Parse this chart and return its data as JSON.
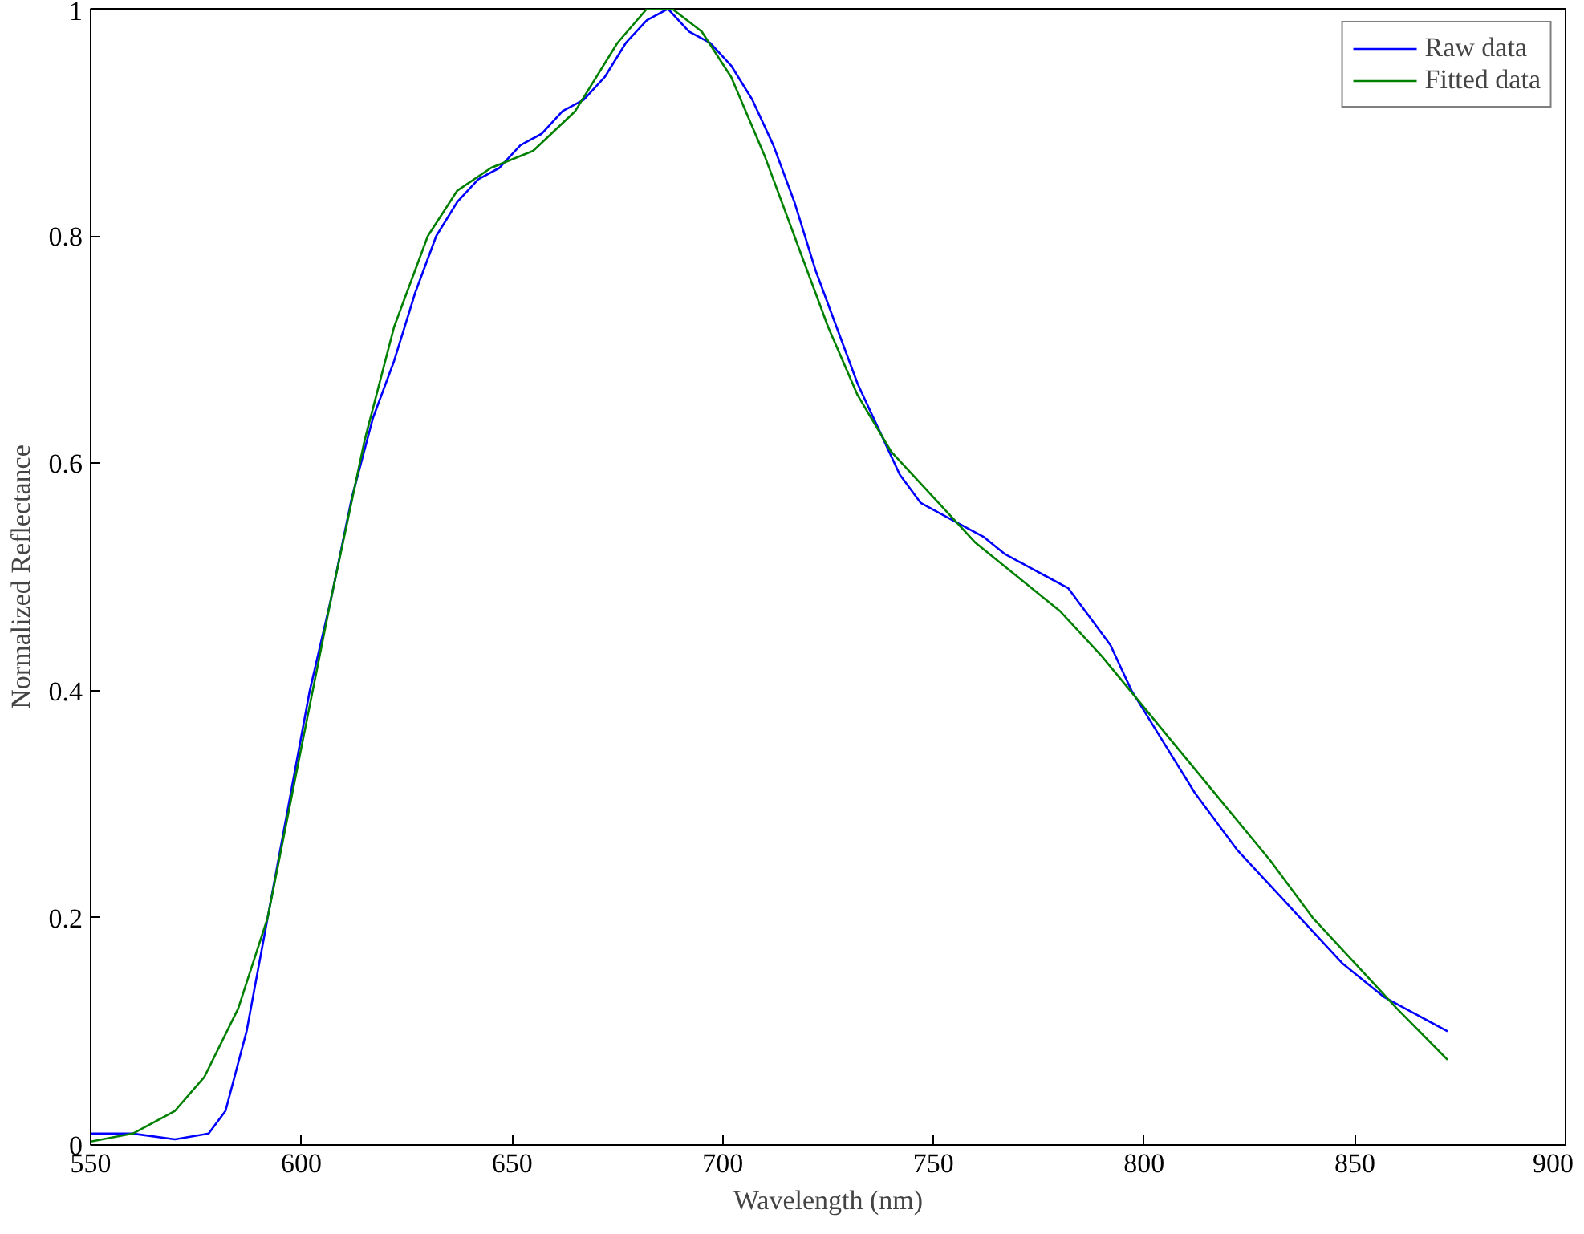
{
  "chart_data": {
    "type": "line",
    "xlabel": "Wavelength (nm)",
    "ylabel": "Normalized Reflectance",
    "xlim": [
      550,
      900
    ],
    "ylim": [
      0,
      1
    ],
    "xticks": [
      550,
      600,
      650,
      700,
      750,
      800,
      850,
      900
    ],
    "yticks": [
      0,
      0.2,
      0.4,
      0.6,
      0.8,
      1
    ],
    "grid": false,
    "legend": "top right",
    "marker": "none",
    "line_style": "solid",
    "series": [
      {
        "name": "Raw data",
        "color": "#0000ff",
        "x": [
          550,
          560,
          570,
          578,
          582,
          587,
          592,
          597,
          602,
          607,
          612,
          617,
          622,
          627,
          632,
          637,
          642,
          647,
          652,
          657,
          662,
          667,
          672,
          677,
          682,
          687,
          692,
          697,
          702,
          707,
          712,
          717,
          722,
          727,
          732,
          737,
          742,
          747,
          752,
          757,
          762,
          767,
          772,
          777,
          782,
          787,
          792,
          797,
          802,
          807,
          812,
          817,
          822,
          827,
          832,
          837,
          842,
          847,
          852,
          857,
          862,
          867,
          872
        ],
        "values": [
          0.01,
          0.01,
          0.005,
          0.01,
          0.03,
          0.1,
          0.2,
          0.3,
          0.4,
          0.48,
          0.57,
          0.64,
          0.69,
          0.75,
          0.8,
          0.83,
          0.85,
          0.86,
          0.88,
          0.89,
          0.91,
          0.92,
          0.94,
          0.97,
          0.99,
          1.0,
          0.98,
          0.97,
          0.95,
          0.92,
          0.88,
          0.83,
          0.77,
          0.72,
          0.67,
          0.63,
          0.59,
          0.565,
          0.555,
          0.545,
          0.535,
          0.52,
          0.51,
          0.5,
          0.49,
          0.465,
          0.44,
          0.4,
          0.37,
          0.34,
          0.31,
          0.285,
          0.26,
          0.24,
          0.22,
          0.2,
          0.18,
          0.16,
          0.145,
          0.13,
          0.12,
          0.11,
          0.1
        ]
      },
      {
        "name": "Fitted data",
        "color": "#008000",
        "x": [
          550,
          560,
          570,
          577,
          585,
          592,
          600,
          607,
          615,
          622,
          630,
          637,
          645,
          655,
          665,
          675,
          682,
          688,
          695,
          702,
          710,
          717,
          725,
          732,
          740,
          750,
          760,
          770,
          780,
          790,
          800,
          810,
          820,
          830,
          840,
          850,
          860,
          872
        ],
        "values": [
          0.003,
          0.01,
          0.03,
          0.06,
          0.12,
          0.2,
          0.35,
          0.48,
          0.62,
          0.72,
          0.8,
          0.84,
          0.86,
          0.875,
          0.91,
          0.97,
          1.0,
          1.0,
          0.98,
          0.94,
          0.87,
          0.8,
          0.72,
          0.66,
          0.61,
          0.57,
          0.53,
          0.5,
          0.47,
          0.43,
          0.385,
          0.34,
          0.295,
          0.25,
          0.2,
          0.16,
          0.12,
          0.075
        ]
      }
    ]
  }
}
